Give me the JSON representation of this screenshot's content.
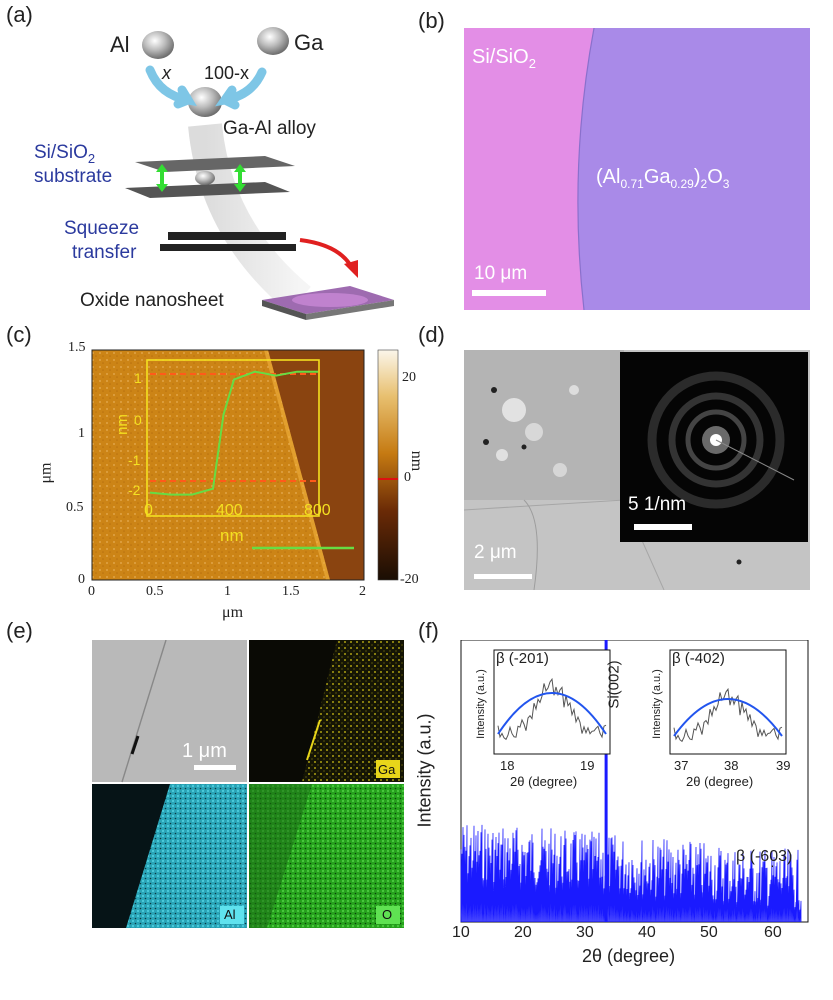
{
  "a": {
    "label": "(a)",
    "al": "Al",
    "ga": "Ga",
    "x": "x",
    "hundred_minus_x": "100-x",
    "alloy": "Ga-Al alloy",
    "substrate_line1": "Si/SiO",
    "substrate_sub": "2",
    "substrate_line2": "substrate",
    "squeeze1": "Squeeze",
    "squeeze2": "transfer",
    "nanosheet": "Oxide nanosheet"
  },
  "b": {
    "label": "(b)",
    "left": "Si/SiO",
    "left_sub": "2",
    "f_open": "(Al",
    "f_s1": "0.71",
    "f_ga": "Ga",
    "f_s2": "0.29",
    "f_close": ")",
    "f_s3": "2",
    "f_o": "O",
    "f_s4": "3",
    "scale": "10 μm",
    "colors": {
      "left": "#e38ee6",
      "right": "#a98ae8"
    }
  },
  "c": {
    "label": "(c)",
    "ylabel": "μm",
    "xlabel": "μm",
    "xticks": [
      "0",
      "0.5",
      "1",
      "1.5",
      "2"
    ],
    "yticks": [
      "1.5",
      "1",
      "0.5",
      "0"
    ],
    "cbar_ticks": [
      "20",
      "0",
      "-20"
    ],
    "cbar_label": "nm",
    "inset_yticks": [
      "1",
      "0",
      "-1",
      "-2"
    ],
    "inset_xticks": [
      "0",
      "400",
      "800"
    ],
    "inset_ylabel": "nm",
    "inset_xlabel": "nm"
  },
  "d": {
    "label": "(d)",
    "inset_scale": "5 1/nm",
    "scale": "2 μm"
  },
  "e": {
    "label": "(e)",
    "scale": "1 μm",
    "ga": "Ga",
    "al": "Al",
    "o": "O"
  },
  "f": {
    "label": "(f)",
    "ylabel": "Intensity (a.u.)",
    "xlabel": "2θ (degree)",
    "si_peak": "Si(002)",
    "beta603": "β (-603)",
    "inset1": {
      "title": "β (-201)",
      "xlabel": "2θ (degree)",
      "ylabel": "Intensity (a.u.)",
      "xticks": [
        "18",
        "19"
      ]
    },
    "inset2": {
      "title": "β (-402)",
      "xlabel": "2θ (degree)",
      "ylabel": "Intensity (a.u.)",
      "xticks": [
        "37",
        "38",
        "39"
      ]
    },
    "xticks": [
      "10",
      "20",
      "30",
      "40",
      "50",
      "60"
    ]
  },
  "chart_data": [
    {
      "type": "line",
      "panel": "c-inset",
      "x": [
        0,
        100,
        200,
        300,
        350,
        400,
        500,
        600,
        700,
        800
      ],
      "y": [
        -1.7,
        -1.75,
        -1.75,
        -1.6,
        0.3,
        1.2,
        1.4,
        1.3,
        1.4,
        1.4
      ],
      "xlim": [
        0,
        800
      ],
      "ylim": [
        -2.3,
        1.7
      ]
    },
    {
      "type": "line",
      "panel": "f",
      "x": [
        10,
        18.3,
        33,
        37.8,
        59.5,
        65
      ],
      "xlim": [
        10,
        65
      ],
      "peaks": [
        {
          "x": 33,
          "name": "Si(002)"
        },
        {
          "x": 59.5,
          "name": "β (-603)"
        }
      ]
    }
  ]
}
